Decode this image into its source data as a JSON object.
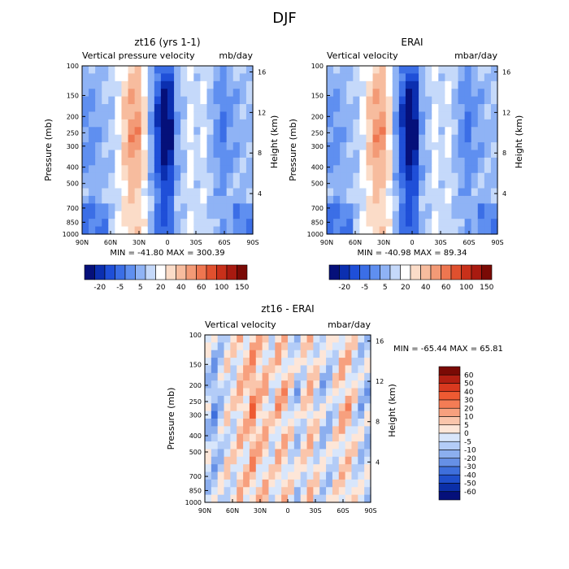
{
  "figure_title": "DJF",
  "chart_data": [
    {
      "type": "heatmap",
      "title": "zt16 (yrs 1-1)",
      "variable": "Vertical pressure velocity",
      "units": "mb/day",
      "ylabel": "Pressure (mb)",
      "ylabel_right": "Height (km)",
      "x_ticks": [
        "90N",
        "60N",
        "30N",
        "0",
        "30S",
        "60S",
        "90S"
      ],
      "y_ticks": [
        "100",
        "150",
        "200",
        "250",
        "300",
        "400",
        "500",
        "700",
        "850",
        "1000"
      ],
      "y_right_ticks": [
        "16",
        "12",
        "8",
        "4"
      ],
      "stats": "MIN = -41.80   MAX = 300.39",
      "colorbar_labels": [
        "-20",
        "-5",
        "5",
        "20",
        "40",
        "60",
        "100",
        "150"
      ],
      "colorbar_colors": [
        "#05107a",
        "#0b2fb0",
        "#1f4fd8",
        "#3b6ee6",
        "#5f8ff0",
        "#8fb3f5",
        "#c5d9fa",
        "#ffffff",
        "#fbdcc8",
        "#f7bc9e",
        "#f39a76",
        "#ee7650",
        "#e0502e",
        "#c8301a",
        "#a81a10",
        "#7a0a05"
      ],
      "profile": [
        -4,
        -4,
        -3,
        -2,
        -1,
        2,
        6,
        9,
        9,
        4,
        -3,
        -10,
        -16,
        -13,
        -3,
        -1,
        2,
        0,
        1,
        -2,
        -4,
        -6,
        -4,
        -3,
        -2
      ]
    },
    {
      "type": "heatmap",
      "title": "ERAI",
      "variable": "Vertical velocity",
      "units": "mbar/day",
      "ylabel": "Pressure (mb)",
      "ylabel_right": "Height (km)",
      "x_ticks": [
        "90N",
        "60N",
        "30N",
        "0",
        "30S",
        "60S",
        "90S"
      ],
      "y_ticks": [
        "100",
        "150",
        "200",
        "250",
        "300",
        "400",
        "500",
        "700",
        "850",
        "1000"
      ],
      "y_right_ticks": [
        "16",
        "12",
        "8",
        "4"
      ],
      "stats": "MIN = -40.98   MAX =  89.34",
      "colorbar_labels": [
        "-20",
        "-5",
        "5",
        "20",
        "40",
        "60",
        "100",
        "150"
      ],
      "colorbar_colors": [
        "#05107a",
        "#0b2fb0",
        "#1f4fd8",
        "#3b6ee6",
        "#5f8ff0",
        "#8fb3f5",
        "#c5d9fa",
        "#ffffff",
        "#fbdcc8",
        "#f7bc9e",
        "#f39a76",
        "#ee7650",
        "#e0502e",
        "#c8301a",
        "#a81a10",
        "#7a0a05"
      ],
      "profile": [
        -4,
        -4,
        -3,
        -2,
        -1,
        2,
        6,
        9,
        9,
        4,
        -3,
        -10,
        -16,
        -13,
        -3,
        -1,
        2,
        0,
        1,
        -2,
        -4,
        -6,
        -4,
        -3,
        -2
      ]
    },
    {
      "type": "heatmap",
      "title": "zt16 - ERAI",
      "variable": "Vertical velocity",
      "units": "mbar/day",
      "ylabel": "Pressure (mb)",
      "ylabel_right": "Height (km)",
      "x_ticks": [
        "90N",
        "60N",
        "30N",
        "0",
        "30S",
        "60S",
        "90S"
      ],
      "y_ticks": [
        "100",
        "150",
        "200",
        "250",
        "300",
        "400",
        "500",
        "700",
        "850",
        "1000"
      ],
      "y_right_ticks": [
        "16",
        "12",
        "8",
        "4"
      ],
      "stats": "MIN = -65.44   MAX =  65.81",
      "colorbar_labels": [
        "60",
        "50",
        "40",
        "30",
        "20",
        "10",
        "5",
        "0",
        "-5",
        "-10",
        "-20",
        "-30",
        "-40",
        "-50",
        "-60"
      ],
      "colorbar_colors": [
        "#7a0a05",
        "#b21f12",
        "#d8391f",
        "#ee5a32",
        "#f47c55",
        "#f7a07e",
        "#fac5ab",
        "#fde6d8",
        "#d8e6fb",
        "#b3ccf7",
        "#8cafef",
        "#6690e6",
        "#3e6fdc",
        "#1f4fcc",
        "#0b2fa8",
        "#05107a"
      ],
      "profile": [
        -1,
        -2,
        -1,
        0,
        0,
        1,
        1,
        2,
        1,
        1,
        0,
        1,
        1,
        0,
        -1,
        0,
        1,
        0,
        -1,
        -1,
        0,
        1,
        1,
        0,
        -1
      ]
    }
  ]
}
